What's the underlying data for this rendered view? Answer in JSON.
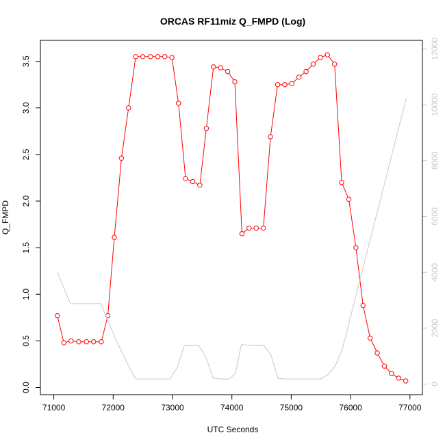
{
  "chart_data": {
    "type": "line",
    "title": "ORCAS RF11miz Q_FMPD (Log)",
    "xlabel": "UTC Seconds",
    "ylabel": "Q_FMPD",
    "y2label": "",
    "xlim": [
      71000,
      77000
    ],
    "ylim": [
      0.0,
      3.5
    ],
    "y2lim": [
      0,
      12000
    ],
    "xticks": [
      "71000",
      "72000",
      "73000",
      "74000",
      "75000",
      "76000",
      "77000"
    ],
    "yticks": [
      "0.0",
      "0.5",
      "1.0",
      "1.5",
      "2.0",
      "2.5",
      "3.0",
      "3.5"
    ],
    "y2ticks": [
      "0",
      "2000",
      "4000",
      "6000",
      "8000",
      "10000",
      "12000"
    ],
    "grid": false,
    "legend": "none",
    "colors": {
      "primary": "#ff0000",
      "secondary": "#c8c8c8",
      "axis": "#000000",
      "axis2": "#c8c8c8"
    },
    "series": [
      {
        "axis": "left",
        "style": "line+circles",
        "x": [
          71060,
          71170,
          71290,
          71420,
          71550,
          71670,
          71800,
          71910,
          72020,
          72140,
          72260,
          72380,
          72500,
          72630,
          72750,
          72870,
          72990,
          73100,
          73220,
          73340,
          73460,
          73570,
          73690,
          73810,
          73930,
          74050,
          74170,
          74290,
          74410,
          74530,
          74650,
          74770,
          74890,
          75010,
          75130,
          75250,
          75370,
          75490,
          75610,
          75730,
          75850,
          75970,
          76090,
          76210,
          76330,
          76450,
          76570,
          76690,
          76810,
          76930
        ],
        "y": [
          0.77,
          0.48,
          0.5,
          0.49,
          0.49,
          0.49,
          0.49,
          0.77,
          1.61,
          2.46,
          3.0,
          3.55,
          3.55,
          3.55,
          3.55,
          3.55,
          3.54,
          3.05,
          2.24,
          2.21,
          2.17,
          2.78,
          3.44,
          3.43,
          3.39,
          3.28,
          1.65,
          1.71,
          1.71,
          1.71,
          2.69,
          3.25,
          3.25,
          3.26,
          3.33,
          3.39,
          3.47,
          3.54,
          3.57,
          3.47,
          2.2,
          2.02,
          1.5,
          0.88,
          0.53,
          0.37,
          0.23,
          0.15,
          0.1,
          0.07
        ]
      },
      {
        "axis": "right",
        "style": "line",
        "x": [
          71060,
          71280,
          71790,
          72060,
          72280,
          72380,
          72960,
          73080,
          73200,
          73440,
          73560,
          73680,
          73820,
          73960,
          74060,
          74160,
          74320,
          74540,
          74660,
          74780,
          74920,
          75500,
          75620,
          75740,
          75860,
          75980,
          76100,
          76220,
          76340,
          76460,
          76580,
          76700,
          76820,
          76940
        ],
        "y": [
          4000,
          2880,
          2880,
          1520,
          560,
          180,
          180,
          600,
          1380,
          1380,
          980,
          220,
          180,
          180,
          380,
          1420,
          1380,
          1380,
          1030,
          200,
          180,
          180,
          340,
          650,
          1250,
          2250,
          3250,
          4250,
          5250,
          6250,
          7250,
          8250,
          9250,
          10250
        ]
      }
    ]
  }
}
